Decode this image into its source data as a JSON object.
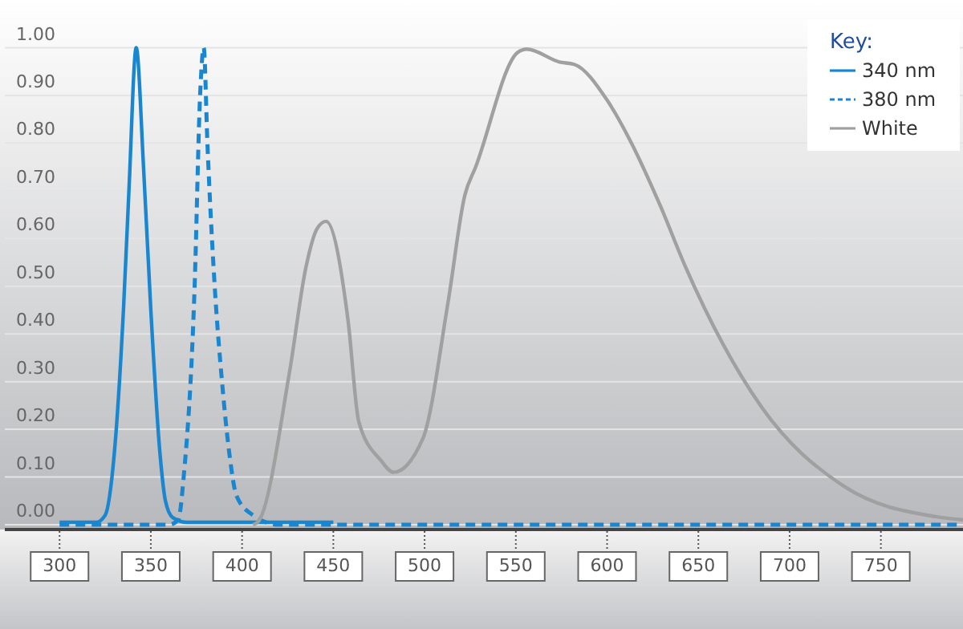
{
  "chart_data": {
    "type": "line",
    "legend_title": "Key:",
    "legend": "top right",
    "grid": "y",
    "xlim": [
      270,
      795
    ],
    "xticks": [
      300,
      350,
      400,
      450,
      500,
      550,
      600,
      650,
      700,
      750
    ],
    "ylim": [
      0,
      1.1
    ],
    "yticks": [
      {
        "value": 0,
        "label": "0.00"
      },
      {
        "value": 0.1,
        "label": "0.10"
      },
      {
        "value": 0.2,
        "label": "0.20"
      },
      {
        "value": 0.3,
        "label": "0.30"
      },
      {
        "value": 0.4,
        "label": "0.40"
      },
      {
        "value": 0.5,
        "label": "0.50"
      },
      {
        "value": 0.6,
        "label": "0.60"
      },
      {
        "value": 0.7,
        "label": "0.70"
      },
      {
        "value": 0.8,
        "label": "0.80"
      },
      {
        "value": 0.9,
        "label": "0.90"
      },
      {
        "value": 1,
        "label": "1.00"
      }
    ],
    "series": [
      {
        "name": "340 nm",
        "color": "#1a86d0",
        "line_style": "solid",
        "x": [
          300,
          320,
          325,
          330,
          335,
          338,
          342,
          346,
          350,
          355,
          358,
          362,
          370,
          420,
          450
        ],
        "values": [
          0.005,
          0.005,
          0.02,
          0.15,
          0.45,
          0.7,
          1.0,
          0.75,
          0.45,
          0.15,
          0.05,
          0.015,
          0.005,
          0.005,
          0.005
        ]
      },
      {
        "name": "380 nm",
        "color": "#1a86d0",
        "line_style": "dashed",
        "x": [
          300,
          360,
          365,
          368,
          374,
          377,
          379,
          381,
          385,
          389,
          393,
          397,
          406,
          420,
          795
        ],
        "values": [
          0.0,
          0.0,
          0.01,
          0.1,
          0.5,
          0.9,
          1.0,
          0.8,
          0.5,
          0.3,
          0.15,
          0.06,
          0.02,
          0.0,
          0.0
        ]
      },
      {
        "name": "White",
        "color": "#a0a0a0",
        "line_style": "solid",
        "x": [
          406,
          409,
          426,
          435,
          441,
          446,
          458,
          464,
          476,
          483,
          499,
          513,
          522,
          528,
          551,
          556,
          574,
          582,
          600,
          612,
          629,
          643,
          684,
          730,
          780,
          795
        ],
        "values": [
          0.0,
          0.007,
          0.32,
          0.54,
          0.62,
          0.636,
          0.43,
          0.215,
          0.135,
          0.11,
          0.18,
          0.47,
          0.69,
          0.75,
          0.99,
          0.997,
          0.97,
          0.965,
          0.89,
          0.81,
          0.67,
          0.54,
          0.25,
          0.08,
          0.017,
          0.01
        ]
      }
    ]
  }
}
